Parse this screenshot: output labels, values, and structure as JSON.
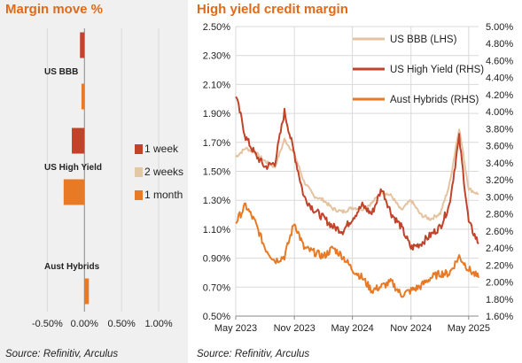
{
  "colors": {
    "accent": "#e06a1a",
    "week": "#c0432a",
    "two_weeks": "#e4c7a5",
    "month": "#e87a25",
    "bbb": "#e4c3a1",
    "hy": "#c0432a",
    "hybrids": "#e87a25",
    "grid": "#d9d9d9"
  },
  "left": {
    "title": "Margin move %",
    "source": "Source: Refinitiv, Arculus"
  },
  "right": {
    "title": "High yield credit margin",
    "source": "Source: Refinitiv, Arculus"
  },
  "chart_data": [
    {
      "type": "bar",
      "orientation": "horizontal",
      "title": "Margin move %",
      "categories": [
        "US BBB",
        "US High Yield",
        "Aust Hybrids"
      ],
      "series": [
        {
          "name": "1 week",
          "values": [
            -0.06,
            -0.17,
            0.0
          ]
        },
        {
          "name": "2 weeks",
          "values": [
            0.0,
            0.0,
            0.0
          ]
        },
        {
          "name": "1 month",
          "values": [
            -0.04,
            -0.28,
            0.06
          ]
        }
      ],
      "xticks": [
        "-0.50%",
        "0.00%",
        "0.50%",
        "1.00%"
      ],
      "xlim": [
        -0.6,
        1.25
      ],
      "grid": true,
      "legend": "right"
    },
    {
      "type": "line",
      "title": "High yield credit margin",
      "x_start": "2023-05",
      "x_end": "2025-06",
      "xticks": [
        "May 2023",
        "Nov 2023",
        "May 2024",
        "Nov 2024",
        "May 2025"
      ],
      "ylim_left": [
        0.5,
        2.5
      ],
      "ylim_right": [
        1.6,
        5.0
      ],
      "yticks_left": [
        "2.50%",
        "2.30%",
        "2.10%",
        "1.90%",
        "1.70%",
        "1.50%",
        "1.30%",
        "1.10%",
        "0.90%",
        "0.70%",
        "0.50%"
      ],
      "yticks_right": [
        "5.00%",
        "4.80%",
        "4.60%",
        "4.40%",
        "4.20%",
        "4.00%",
        "3.80%",
        "3.60%",
        "3.40%",
        "3.20%",
        "3.00%",
        "2.80%",
        "2.60%",
        "2.40%",
        "2.20%",
        "2.00%",
        "1.80%",
        "1.60%"
      ],
      "grid": true,
      "legend": "top-right",
      "series": [
        {
          "name": "US BBB (LHS)",
          "axis": "left",
          "x": [
            "2023-05",
            "2023-06",
            "2023-07",
            "2023-08",
            "2023-09",
            "2023-10",
            "2023-11",
            "2023-12",
            "2024-01",
            "2024-02",
            "2024-03",
            "2024-04",
            "2024-05",
            "2024-06",
            "2024-07",
            "2024-08",
            "2024-09",
            "2024-10",
            "2024-11",
            "2024-12",
            "2025-01",
            "2025-02",
            "2025-03",
            "2025-04",
            "2025-05",
            "2025-06"
          ],
          "y": [
            1.6,
            1.66,
            1.63,
            1.57,
            1.53,
            1.72,
            1.62,
            1.43,
            1.33,
            1.3,
            1.24,
            1.22,
            1.25,
            1.24,
            1.28,
            1.36,
            1.33,
            1.23,
            1.3,
            1.2,
            1.17,
            1.21,
            1.4,
            1.8,
            1.38,
            1.34
          ]
        },
        {
          "name": "US High Yield (RHS)",
          "axis": "right",
          "x": [
            "2023-05",
            "2023-06",
            "2023-07",
            "2023-08",
            "2023-09",
            "2023-10",
            "2023-11",
            "2023-12",
            "2024-01",
            "2024-02",
            "2024-03",
            "2024-04",
            "2024-05",
            "2024-06",
            "2024-07",
            "2024-08",
            "2024-09",
            "2024-10",
            "2024-11",
            "2024-12",
            "2025-01",
            "2025-02",
            "2025-03",
            "2025-04",
            "2025-05",
            "2025-06"
          ],
          "y": [
            4.2,
            3.7,
            3.5,
            3.35,
            3.4,
            4.0,
            3.5,
            3.0,
            2.85,
            2.75,
            2.65,
            2.6,
            2.75,
            2.9,
            2.8,
            3.1,
            2.8,
            2.65,
            2.4,
            2.45,
            2.55,
            2.65,
            2.9,
            3.7,
            2.7,
            2.45
          ]
        },
        {
          "name": "Aust Hybrids (RHS)",
          "axis": "right",
          "x": [
            "2023-05",
            "2023-06",
            "2023-07",
            "2023-08",
            "2023-09",
            "2023-10",
            "2023-11",
            "2023-12",
            "2024-01",
            "2024-02",
            "2024-03",
            "2024-04",
            "2024-05",
            "2024-06",
            "2024-07",
            "2024-08",
            "2024-09",
            "2024-10",
            "2024-11",
            "2024-12",
            "2025-01",
            "2025-02",
            "2025-03",
            "2025-04",
            "2025-05",
            "2025-06"
          ],
          "y": [
            2.7,
            2.9,
            2.7,
            2.4,
            2.25,
            2.3,
            2.7,
            2.4,
            2.35,
            2.3,
            2.4,
            2.3,
            2.15,
            2.05,
            1.9,
            1.95,
            2.0,
            1.85,
            1.9,
            1.95,
            2.05,
            2.1,
            2.1,
            2.3,
            2.15,
            2.05
          ]
        }
      ]
    }
  ]
}
